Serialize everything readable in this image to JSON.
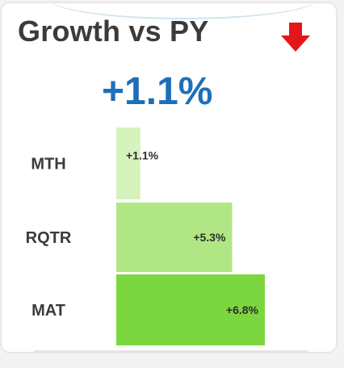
{
  "title": "Growth vs PY",
  "trend_icon": "arrow-down-icon",
  "headline_value": "+1.1%",
  "colors": {
    "title": "#3b3b3b",
    "headline": "#1f6fb8",
    "arrow": "#e4161b",
    "bars": [
      "#d6f2bd",
      "#b0e684",
      "#7bd640"
    ]
  },
  "chart_data": {
    "type": "bar",
    "orientation": "horizontal",
    "categories": [
      "MTH",
      "RQTR",
      "MAT"
    ],
    "values": [
      1.1,
      5.3,
      6.8
    ],
    "labels": [
      "+1.1%",
      "+5.3%",
      "+6.8%"
    ],
    "xlim": [
      0,
      7.0
    ]
  }
}
